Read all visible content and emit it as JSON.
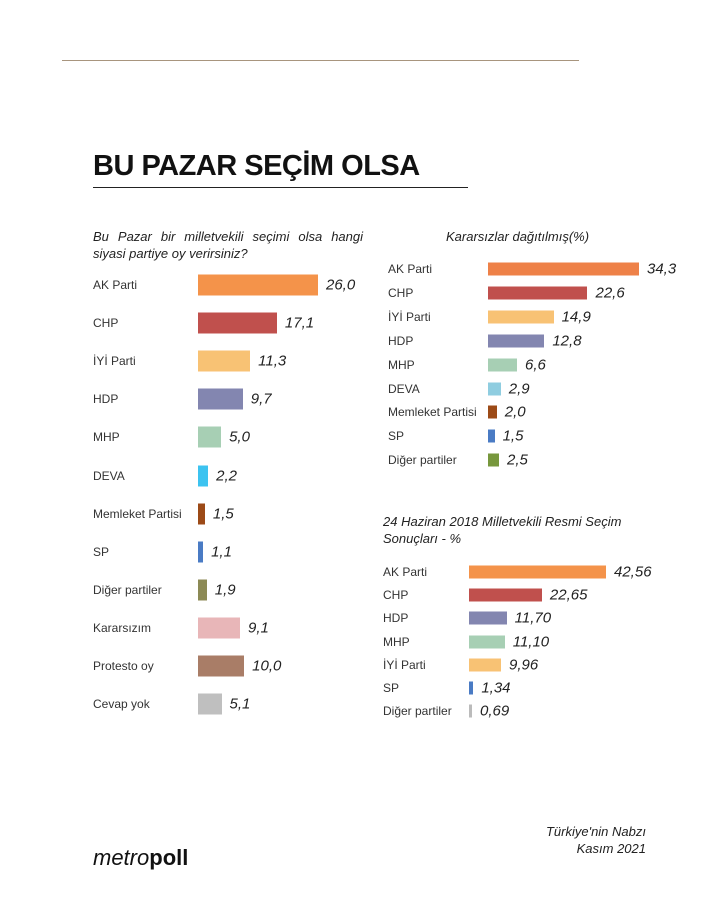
{
  "header": {
    "title": "BU PAZAR SEÇİM OLSA"
  },
  "footer": {
    "logo_light": "metro",
    "logo_bold": "poll",
    "source_line1": "Türkiye'nin Nabzı",
    "source_line2": "Kasım 2021"
  },
  "chart_data": [
    {
      "type": "bar",
      "orientation": "horizontal",
      "title": "Bu Pazar bir milletvekili seçimi olsa hangi siyasi partiye oy verirsiniz?",
      "categories": [
        "AK Parti",
        "CHP",
        "İYİ Parti",
        "HDP",
        "MHP",
        "DEVA",
        "Memleket Partisi",
        "SP",
        "Diğer partiler",
        "Kararsızım",
        "Protesto oy",
        "Cevap yok"
      ],
      "values": [
        26.0,
        17.1,
        11.3,
        9.7,
        5.0,
        2.2,
        1.5,
        1.1,
        1.9,
        9.1,
        10.0,
        5.1
      ],
      "labels": [
        "26,0",
        "17,1",
        "11,3",
        "9,7",
        "5,0",
        "2,2",
        "1,5",
        "1,1",
        "1,9",
        "9,1",
        "10,0",
        "5,1"
      ],
      "colors": [
        "#f4934a",
        "#c0504d",
        "#f8c274",
        "#8386b0",
        "#a7cfb4",
        "#3cc3f0",
        "#9c4a17",
        "#4a7bc4",
        "#8c8a55",
        "#e8b6b8",
        "#a97d67",
        "#bfbfbf"
      ]
    },
    {
      "type": "bar",
      "orientation": "horizontal",
      "title": "Kararsızlar dağıtılmış(%)",
      "categories": [
        "AK Parti",
        "CHP",
        "İYİ Parti",
        "HDP",
        "MHP",
        "DEVA",
        "Memleket Partisi",
        "SP",
        "Diğer partiler"
      ],
      "values": [
        34.3,
        22.6,
        14.9,
        12.8,
        6.6,
        2.9,
        2.0,
        1.5,
        2.5
      ],
      "labels": [
        "34,3",
        "22,6",
        "14,9",
        "12,8",
        "6,6",
        "2,9",
        "2,0",
        "1,5",
        "2,5"
      ],
      "colors": [
        "#ee8148",
        "#c0504d",
        "#f8c274",
        "#8386b0",
        "#a7cfb4",
        "#8fcde0",
        "#9c4a17",
        "#4a7bc4",
        "#77973d"
      ]
    },
    {
      "type": "bar",
      "orientation": "horizontal",
      "title": "24 Haziran 2018 Milletvekili Resmi Seçim Sonuçları - %",
      "categories": [
        "AK Parti",
        "CHP",
        "HDP",
        "MHP",
        "İYİ Parti",
        "SP",
        "Diğer partiler"
      ],
      "values": [
        42.56,
        22.65,
        11.7,
        11.1,
        9.96,
        1.34,
        0.69
      ],
      "labels": [
        "42,56",
        "22,65",
        "11,70",
        "11,10",
        "9,96",
        "1,34",
        "0,69"
      ],
      "colors": [
        "#f4934a",
        "#c0504d",
        "#8386b0",
        "#a7cfb4",
        "#f8c274",
        "#4a7bc4",
        "#bbbbbb"
      ]
    }
  ]
}
